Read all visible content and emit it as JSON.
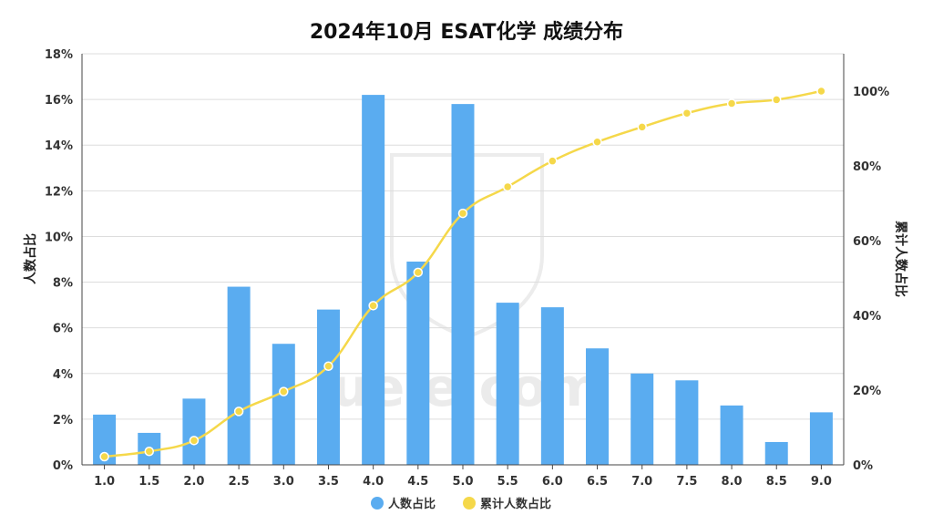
{
  "chart_data": {
    "type": "bar",
    "title": "2024年10月 ESAT化学 成绩分布",
    "categories": [
      "1.0",
      "1.5",
      "2.0",
      "2.5",
      "3.0",
      "3.5",
      "4.0",
      "4.5",
      "5.0",
      "5.5",
      "6.0",
      "6.5",
      "7.0",
      "7.5",
      "8.0",
      "8.5",
      "9.0"
    ],
    "ylabel": "人数占比",
    "y2label": "累计人数占比",
    "ylim": [
      0,
      18
    ],
    "y2lim": [
      0,
      110
    ],
    "yticks": [
      "0%",
      "2%",
      "4%",
      "6%",
      "8%",
      "10%",
      "12%",
      "14%",
      "16%",
      "18%"
    ],
    "y2ticks": [
      "0%",
      "20%",
      "40%",
      "60%",
      "80%",
      "100%"
    ],
    "grid": true,
    "legend_position": "bottom",
    "series": [
      {
        "name": "人数占比",
        "type": "bar",
        "color": "#5aacf0",
        "axis": "left",
        "values": [
          2.2,
          1.4,
          2.9,
          7.8,
          5.3,
          6.8,
          16.2,
          8.9,
          15.8,
          7.1,
          6.9,
          5.1,
          4.0,
          3.7,
          2.6,
          1.0,
          2.3
        ]
      },
      {
        "name": "累计人数占比",
        "type": "line",
        "color": "#f5d84a",
        "axis": "right",
        "values": [
          2.2,
          3.6,
          6.5,
          14.3,
          19.6,
          26.4,
          42.6,
          51.5,
          67.3,
          74.4,
          81.3,
          86.4,
          90.4,
          94.1,
          96.7,
          97.7,
          100
        ]
      }
    ],
    "watermark": "ueie.com unitum electissimi"
  }
}
